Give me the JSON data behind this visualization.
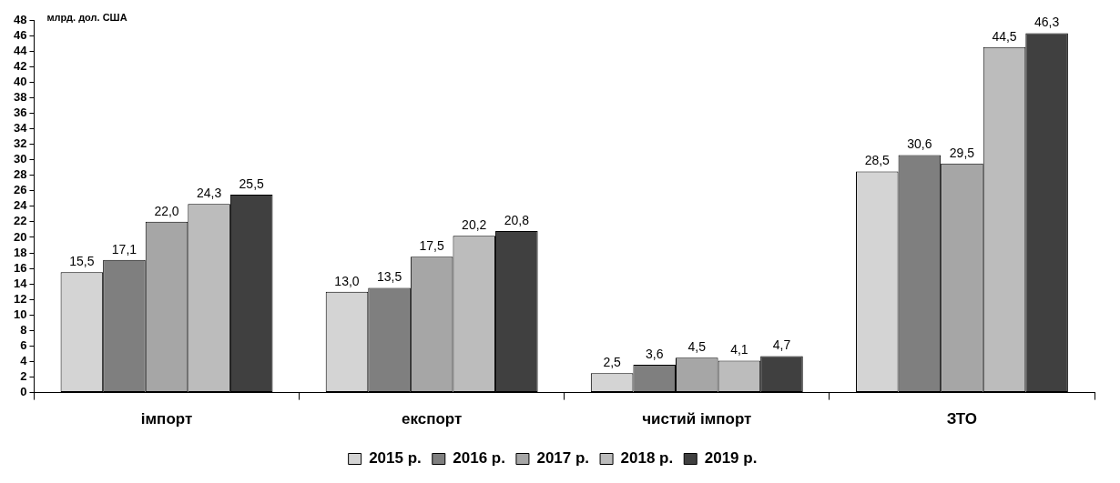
{
  "chart_data": {
    "type": "bar",
    "ylabel": "млрд. дол. США",
    "categories": [
      "імпорт",
      "експорт",
      "чистий імпорт",
      "ЗТО"
    ],
    "series": [
      {
        "name": "2015 р.",
        "color": "#d4d4d4",
        "values": [
          15.5,
          13.0,
          2.5,
          28.5
        ],
        "value_labels": [
          "15,5",
          "13,0",
          "2,5",
          "28,5"
        ]
      },
      {
        "name": "2016 р.",
        "color": "#7f7f7f",
        "values": [
          17.1,
          13.5,
          3.6,
          30.6
        ],
        "value_labels": [
          "17,1",
          "13,5",
          "3,6",
          "30,6"
        ]
      },
      {
        "name": "2017 р.",
        "color": "#a6a6a6",
        "values": [
          22.0,
          17.5,
          4.5,
          29.5
        ],
        "value_labels": [
          "22,0",
          "17,5",
          "4,5",
          "29,5"
        ]
      },
      {
        "name": "2018 р.",
        "color": "#bcbcbc",
        "values": [
          24.3,
          20.2,
          4.1,
          44.5
        ],
        "value_labels": [
          "24,3",
          "20,2",
          "4,1",
          "44,5"
        ]
      },
      {
        "name": "2019 р.",
        "color": "#404040",
        "values": [
          25.5,
          20.8,
          4.7,
          46.3
        ],
        "value_labels": [
          "25,5",
          "20,8",
          "4,7",
          "46,3"
        ]
      }
    ],
    "ylim": [
      0,
      48
    ],
    "yticks": [
      0,
      2,
      4,
      6,
      8,
      10,
      12,
      14,
      16,
      18,
      20,
      22,
      24,
      26,
      28,
      30,
      32,
      34,
      36,
      38,
      40,
      42,
      44,
      46,
      48
    ],
    "grid": false,
    "legend": "bottom"
  }
}
